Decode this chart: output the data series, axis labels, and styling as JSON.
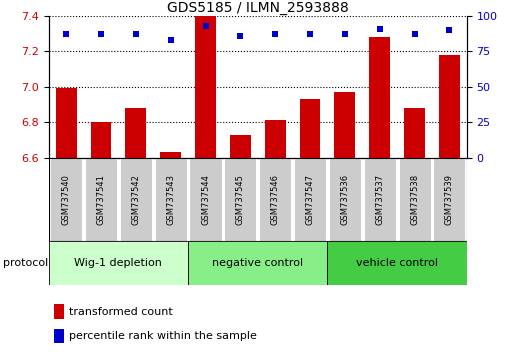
{
  "title": "GDS5185 / ILMN_2593888",
  "samples": [
    "GSM737540",
    "GSM737541",
    "GSM737542",
    "GSM737543",
    "GSM737544",
    "GSM737545",
    "GSM737546",
    "GSM737547",
    "GSM737536",
    "GSM737537",
    "GSM737538",
    "GSM737539"
  ],
  "bar_values": [
    6.99,
    6.8,
    6.88,
    6.63,
    7.4,
    6.73,
    6.81,
    6.93,
    6.97,
    7.28,
    6.88,
    7.18
  ],
  "dot_values_pct": [
    87,
    87,
    87,
    83,
    93,
    86,
    87,
    87,
    87,
    91,
    87,
    90
  ],
  "ylim_left": [
    6.6,
    7.4
  ],
  "yticks_left": [
    6.6,
    6.8,
    7.0,
    7.2,
    7.4
  ],
  "yticks_right": [
    0,
    25,
    50,
    75,
    100
  ],
  "ylim_right": [
    0,
    100
  ],
  "bar_color": "#cc0000",
  "dot_color": "#0000cc",
  "groups": [
    {
      "label": "Wig-1 depletion",
      "start": 0,
      "end": 3,
      "color": "#ccffcc"
    },
    {
      "label": "negative control",
      "start": 4,
      "end": 7,
      "color": "#88ee88"
    },
    {
      "label": "vehicle control",
      "start": 8,
      "end": 11,
      "color": "#44cc44"
    }
  ],
  "protocol_label": "protocol",
  "legend1_label": "transformed count",
  "legend2_label": "percentile rank within the sample",
  "bar_width": 0.6,
  "ybase": 6.6,
  "sample_box_color": "#cccccc",
  "grid_color": "black",
  "title_fontsize": 10,
  "axis_fontsize": 8,
  "label_fontsize": 7,
  "legend_fontsize": 8
}
